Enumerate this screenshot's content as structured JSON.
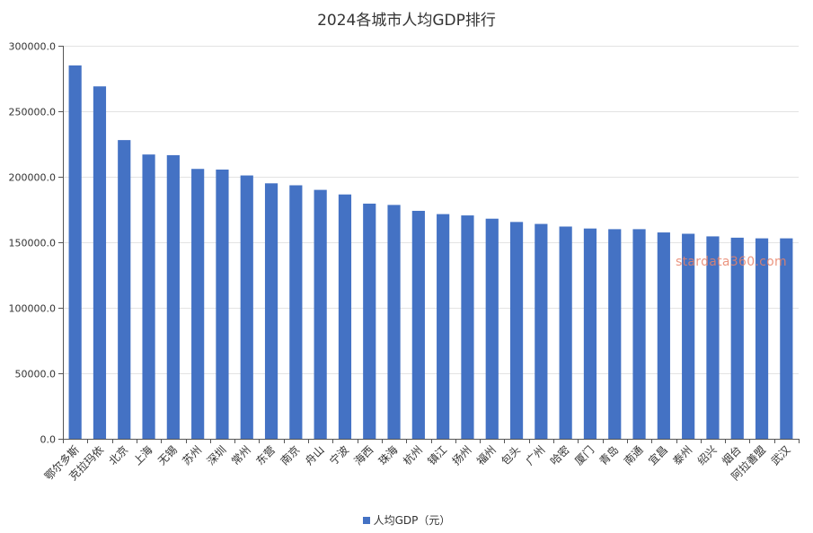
{
  "chart_data": {
    "type": "bar",
    "title": "2024各城市人均GDP排行",
    "xlabel": "",
    "ylabel": "",
    "ylim": [
      0,
      300000
    ],
    "yticks": [
      "0.0",
      "50000.0",
      "100000.0",
      "150000.0",
      "200000.0",
      "250000.0",
      "300000.0"
    ],
    "grid": true,
    "legend_position": "bottom",
    "categories": [
      "鄂尔多斯",
      "克拉玛依",
      "北京",
      "上海",
      "无锡",
      "苏州",
      "深圳",
      "常州",
      "东营",
      "南京",
      "舟山",
      "宁波",
      "海西",
      "珠海",
      "杭州",
      "镇江",
      "扬州",
      "福州",
      "包头",
      "广州",
      "哈密",
      "厦门",
      "青岛",
      "南通",
      "宜昌",
      "泰州",
      "绍兴",
      "烟台",
      "阿拉善盟",
      "武汉"
    ],
    "series": [
      {
        "name": "人均GDP（元）",
        "color": "#4472c4",
        "values": [
          285000,
          269000,
          228000,
          217000,
          216500,
          206000,
          205500,
          201000,
          195000,
          193500,
          190000,
          186500,
          179500,
          178500,
          174000,
          171500,
          170500,
          168000,
          165500,
          164000,
          162000,
          160500,
          160000,
          160000,
          157500,
          156500,
          154500,
          153500,
          153000,
          153000
        ]
      }
    ]
  },
  "watermark": "stardata360.com"
}
